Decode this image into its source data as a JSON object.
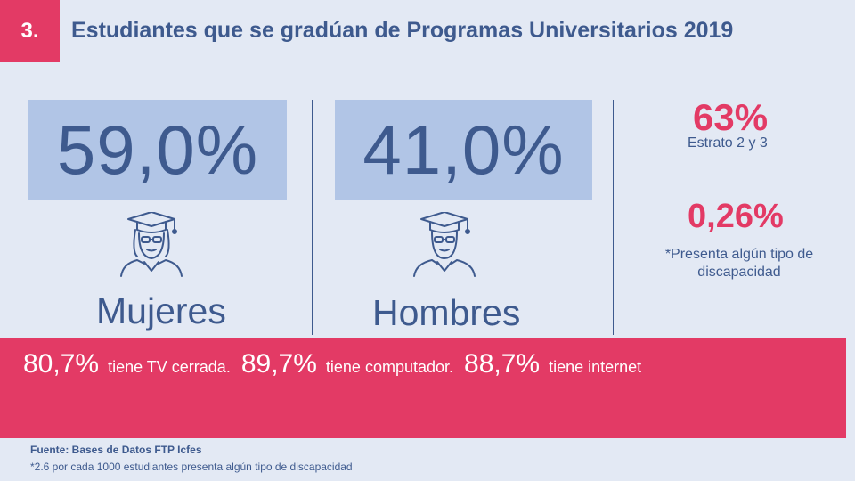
{
  "header": {
    "section_number": "3.",
    "title": "Estudiantes que se gradúan de Programas Universitarios 2019"
  },
  "women": {
    "percent": "59,0%",
    "label": "Mujeres",
    "icon": "female-graduate-icon"
  },
  "men": {
    "percent": "41,0%",
    "label": "Hombres",
    "icon": "male-graduate-icon"
  },
  "side": {
    "stat1_value": "63%",
    "stat1_caption": "Estrato 2 y 3",
    "stat2_value": "0,26%",
    "stat2_caption": "*Presenta algún tipo de discapacidad"
  },
  "band": {
    "tv_value": "80,7%",
    "tv_text": "tiene TV cerrada.",
    "pc_value": "89,7%",
    "pc_text": "tiene computador.",
    "net_value": "88,7%",
    "net_text": "tiene internet"
  },
  "footer": {
    "source": "Fuente: Bases de Datos FTP Icfes",
    "note": "*2.6 por cada 1000 estudiantes presenta algún tipo de discapacidad"
  },
  "colors": {
    "accent": "#e33a65",
    "primary": "#3e5a8e",
    "box": "#b1c5e6",
    "background": "#e3e9f4"
  }
}
